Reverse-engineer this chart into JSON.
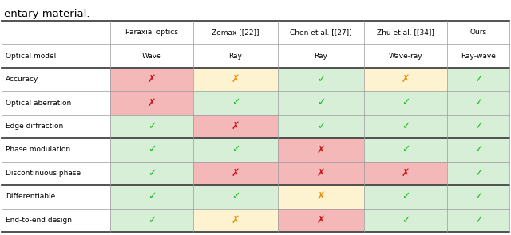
{
  "title_text": "entary material.",
  "col_headers": [
    "Paraxial optics",
    "Zemax [[22]]",
    "Chen et al. [[27]]",
    "Zhu et al. [[34]]",
    "Ours"
  ],
  "optical_model_values": [
    "Wave",
    "Ray",
    "Ray",
    "Wave-ray",
    "Ray-wave"
  ],
  "row_labels": [
    "Accuracy",
    "Optical aberration",
    "Edge diffraction",
    "Phase modulation",
    "Discontinuous phase",
    "Differentiable",
    "End-to-end design"
  ],
  "symbols": [
    [
      "red_x",
      "orange_x",
      "green_check",
      "orange_x",
      "green_check"
    ],
    [
      "red_x",
      "green_check",
      "green_check",
      "green_check",
      "green_check"
    ],
    [
      "green_check",
      "red_x",
      "green_check",
      "green_check",
      "green_check"
    ],
    [
      "green_check",
      "green_check",
      "red_x",
      "green_check",
      "green_check"
    ],
    [
      "green_check",
      "red_x",
      "red_x",
      "red_x",
      "green_check"
    ],
    [
      "green_check",
      "green_check",
      "orange_x",
      "green_check",
      "green_check"
    ],
    [
      "green_check",
      "orange_x",
      "red_x",
      "green_check",
      "green_check"
    ]
  ],
  "cell_colors": [
    [
      "#f5b8b8",
      "#fef3d0",
      "#d6efd6",
      "#fef3d0",
      "#d6efd6"
    ],
    [
      "#f5b8b8",
      "#d6efd6",
      "#d6efd6",
      "#d6efd6",
      "#d6efd6"
    ],
    [
      "#d6efd6",
      "#f5b8b8",
      "#d6efd6",
      "#d6efd6",
      "#d6efd6"
    ],
    [
      "#d6efd6",
      "#d6efd6",
      "#f5b8b8",
      "#d6efd6",
      "#d6efd6"
    ],
    [
      "#d6efd6",
      "#f5b8b8",
      "#f5b8b8",
      "#f5b8b8",
      "#d6efd6"
    ],
    [
      "#d6efd6",
      "#d6efd6",
      "#fef3d0",
      "#d6efd6",
      "#d6efd6"
    ],
    [
      "#d6efd6",
      "#fef3d0",
      "#f5b8b8",
      "#d6efd6",
      "#d6efd6"
    ]
  ],
  "green_check_color": "#22bb22",
  "red_x_color": "#cc1111",
  "orange_x_color": "#ee8800",
  "fig_width": 6.4,
  "fig_height": 2.95,
  "dpi": 100
}
